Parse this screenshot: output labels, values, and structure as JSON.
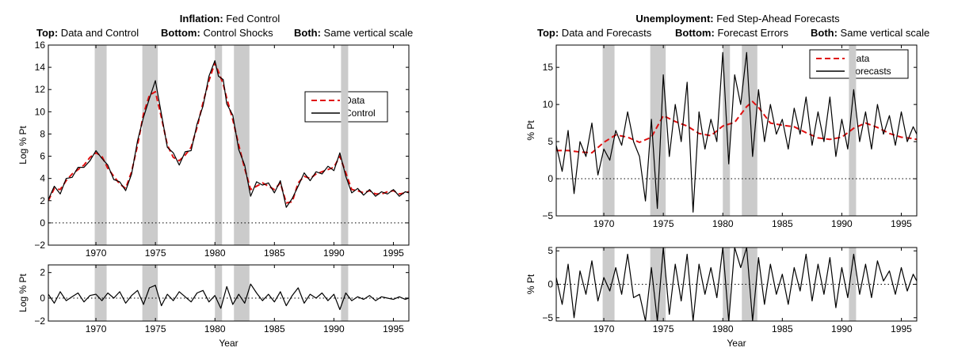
{
  "chart_data": [
    {
      "id": "inflation",
      "type": "line",
      "title_bold": "Inflation:",
      "title_rest": "Fed Control",
      "sub_labels": [
        {
          "bold": "Top:",
          "text": "Data and Control"
        },
        {
          "bold": "Bottom:",
          "text": "Control Shocks"
        },
        {
          "bold": "Both:",
          "text": "Same vertical scale"
        }
      ],
      "xlabel": "Year",
      "xlim": [
        1966,
        1996.3
      ],
      "xticks": [
        1970,
        1975,
        1980,
        1985,
        1990,
        1995
      ],
      "shaded_periods": [
        [
          1969.9,
          1970.9
        ],
        [
          1973.9,
          1975.2
        ],
        [
          1980.0,
          1980.6
        ],
        [
          1981.6,
          1982.9
        ],
        [
          1990.6,
          1991.2
        ]
      ],
      "top": {
        "ylabel": "Log % Pt",
        "ylim": [
          -2,
          16
        ],
        "yticks": [
          -2,
          0,
          2,
          4,
          6,
          8,
          10,
          12,
          14,
          16
        ],
        "zero_line": true,
        "legend_position": "right",
        "series": [
          {
            "name": "Data",
            "color": "#e01010",
            "style": "dashed",
            "x": [
              1966.0,
              1966.5,
              1967.0,
              1967.5,
              1968.0,
              1968.5,
              1969.0,
              1969.5,
              1970.0,
              1970.5,
              1971.0,
              1971.5,
              1972.0,
              1972.5,
              1973.0,
              1973.5,
              1974.0,
              1974.5,
              1975.0,
              1975.5,
              1976.0,
              1976.5,
              1977.0,
              1977.5,
              1978.0,
              1978.5,
              1979.0,
              1979.5,
              1980.0,
              1980.3,
              1980.7,
              1981.0,
              1981.5,
              1982.0,
              1982.5,
              1983.0,
              1983.5,
              1984.0,
              1984.5,
              1985.0,
              1985.5,
              1986.0,
              1986.5,
              1987.0,
              1987.5,
              1988.0,
              1988.5,
              1989.0,
              1989.5,
              1990.0,
              1990.5,
              1991.0,
              1991.5,
              1992.0,
              1992.5,
              1993.0,
              1993.5,
              1994.0,
              1994.5,
              1995.0,
              1995.5,
              1996.0,
              1996.3
            ],
            "y": [
              2.0,
              3.1,
              3.0,
              3.8,
              4.4,
              4.8,
              5.2,
              5.9,
              6.3,
              6.0,
              4.9,
              4.2,
              3.5,
              3.1,
              4.6,
              7.0,
              9.8,
              11.5,
              11.8,
              9.5,
              7.0,
              5.9,
              5.6,
              6.1,
              6.8,
              8.6,
              10.8,
              12.8,
              14.4,
              13.6,
              12.5,
              11.2,
              9.3,
              7.0,
              4.9,
              3.0,
              3.3,
              3.6,
              3.3,
              3.0,
              3.6,
              1.8,
              1.9,
              3.6,
              4.2,
              4.0,
              4.4,
              4.6,
              4.8,
              5.0,
              6.0,
              4.5,
              3.0,
              2.9,
              2.7,
              2.9,
              2.6,
              2.6,
              2.8,
              2.9,
              2.6,
              2.7,
              2.8
            ]
          },
          {
            "name": "Control",
            "color": "#000000",
            "style": "solid",
            "x": [
              1966.0,
              1966.5,
              1967.0,
              1967.5,
              1968.0,
              1968.5,
              1969.0,
              1969.5,
              1970.0,
              1970.5,
              1971.0,
              1971.5,
              1972.0,
              1972.5,
              1973.0,
              1973.5,
              1974.0,
              1974.5,
              1975.0,
              1975.5,
              1976.0,
              1976.5,
              1977.0,
              1977.5,
              1978.0,
              1978.5,
              1979.0,
              1979.5,
              1980.0,
              1980.3,
              1980.7,
              1981.0,
              1981.5,
              1982.0,
              1982.5,
              1983.0,
              1983.5,
              1984.0,
              1984.5,
              1985.0,
              1985.5,
              1986.0,
              1986.5,
              1987.0,
              1987.5,
              1988.0,
              1988.5,
              1989.0,
              1989.5,
              1990.0,
              1990.5,
              1991.0,
              1991.5,
              1992.0,
              1992.5,
              1993.0,
              1993.5,
              1994.0,
              1994.5,
              1995.0,
              1995.5,
              1996.0,
              1996.3
            ],
            "y": [
              2.1,
              3.3,
              2.6,
              4.0,
              4.1,
              5.0,
              5.0,
              5.6,
              6.5,
              5.8,
              5.2,
              3.9,
              3.7,
              2.9,
              4.4,
              7.4,
              9.5,
              11.2,
              12.8,
              9.8,
              6.8,
              6.3,
              5.2,
              6.4,
              6.5,
              8.9,
              10.5,
              13.2,
              14.6,
              13.2,
              12.9,
              10.7,
              9.7,
              6.6,
              5.2,
              2.4,
              3.7,
              3.4,
              3.6,
              2.7,
              3.8,
              1.4,
              2.2,
              3.3,
              4.5,
              3.8,
              4.6,
              4.4,
              5.1,
              4.7,
              6.3,
              4.2,
              2.7,
              3.1,
              2.5,
              3.0,
              2.4,
              2.8,
              2.6,
              3.0,
              2.4,
              2.8,
              2.7
            ]
          }
        ]
      },
      "bottom": {
        "ylabel": "Log % Pt",
        "ylim": [
          -1.8,
          2.6
        ],
        "yticks": [
          -2,
          0,
          2
        ],
        "zero_line": true,
        "series": [
          {
            "name": "Control Shocks",
            "color": "#000000",
            "style": "solid",
            "x": [
              1966.0,
              1966.5,
              1967.0,
              1967.5,
              1968.0,
              1968.5,
              1969.0,
              1969.5,
              1970.0,
              1970.5,
              1971.0,
              1971.5,
              1972.0,
              1972.5,
              1973.0,
              1973.5,
              1974.0,
              1974.5,
              1975.0,
              1975.5,
              1976.0,
              1976.5,
              1977.0,
              1977.5,
              1978.0,
              1978.5,
              1979.0,
              1979.5,
              1980.0,
              1980.5,
              1981.0,
              1981.5,
              1982.0,
              1982.5,
              1983.0,
              1983.5,
              1984.0,
              1984.5,
              1985.0,
              1985.5,
              1986.0,
              1986.5,
              1987.0,
              1987.5,
              1988.0,
              1988.5,
              1989.0,
              1989.5,
              1990.0,
              1990.5,
              1991.0,
              1991.5,
              1992.0,
              1992.5,
              1993.0,
              1993.5,
              1994.0,
              1994.5,
              1995.0,
              1995.5,
              1996.0,
              1996.3
            ],
            "y": [
              0.3,
              -0.4,
              0.5,
              -0.2,
              0.1,
              0.4,
              -0.3,
              0.2,
              0.3,
              -0.2,
              0.4,
              0.0,
              0.5,
              -0.4,
              0.2,
              0.6,
              -0.5,
              0.8,
              1.0,
              -0.6,
              0.3,
              -0.2,
              0.5,
              0.1,
              -0.3,
              0.4,
              0.6,
              -0.3,
              0.2,
              -0.8,
              0.9,
              -0.5,
              0.3,
              -0.4,
              1.1,
              0.4,
              -0.2,
              0.3,
              -0.3,
              0.5,
              -0.6,
              0.2,
              0.8,
              -0.4,
              0.3,
              0.0,
              0.4,
              -0.2,
              0.3,
              -0.9,
              0.4,
              -0.2,
              0.1,
              -0.1,
              0.2,
              -0.2,
              0.1,
              0.0,
              -0.1,
              0.1,
              -0.1,
              0.0
            ]
          }
        ]
      }
    },
    {
      "id": "unemployment",
      "type": "line",
      "title_bold": "Unemployment:",
      "title_rest": "Fed Step-Ahead Forecasts",
      "sub_labels": [
        {
          "bold": "Top:",
          "text": "Data and Forecasts"
        },
        {
          "bold": "Bottom:",
          "text": "Forecast Errors"
        },
        {
          "bold": "Both:",
          "text": "Same vertical scale"
        }
      ],
      "xlabel": "Year",
      "xlim": [
        1966,
        1996.3
      ],
      "xticks": [
        1970,
        1975,
        1980,
        1985,
        1990,
        1995
      ],
      "shaded_periods": [
        [
          1969.9,
          1970.9
        ],
        [
          1973.9,
          1975.2
        ],
        [
          1980.0,
          1980.6
        ],
        [
          1981.6,
          1982.9
        ],
        [
          1990.6,
          1991.2
        ]
      ],
      "top": {
        "ylabel": "% Pt",
        "ylim": [
          -5,
          18
        ],
        "yticks": [
          -5,
          0,
          5,
          10,
          15
        ],
        "zero_line": true,
        "legend_position": "top-right",
        "series": [
          {
            "name": "Data",
            "color": "#e01010",
            "style": "dashed",
            "x": [
              1966.0,
              1967.0,
              1968.0,
              1969.0,
              1970.0,
              1971.0,
              1972.0,
              1973.0,
              1974.0,
              1975.0,
              1976.0,
              1977.0,
              1978.0,
              1979.0,
              1980.0,
              1981.0,
              1982.0,
              1982.5,
              1983.0,
              1984.0,
              1985.0,
              1986.0,
              1987.0,
              1988.0,
              1989.0,
              1990.0,
              1991.0,
              1992.0,
              1993.0,
              1994.0,
              1995.0,
              1996.0,
              1996.3
            ],
            "y": [
              3.8,
              3.8,
              3.6,
              3.5,
              4.9,
              5.9,
              5.6,
              4.9,
              5.6,
              8.5,
              7.7,
              7.1,
              6.1,
              5.8,
              7.1,
              7.6,
              9.7,
              10.4,
              9.6,
              7.5,
              7.2,
              7.0,
              6.2,
              5.5,
              5.3,
              5.6,
              6.8,
              7.5,
              6.9,
              6.1,
              5.6,
              5.4,
              5.3
            ]
          },
          {
            "name": "Forecasts",
            "color": "#000000",
            "style": "solid",
            "x": [
              1966.0,
              1966.5,
              1967.0,
              1967.5,
              1968.0,
              1968.5,
              1969.0,
              1969.5,
              1970.0,
              1970.5,
              1971.0,
              1971.5,
              1972.0,
              1972.5,
              1973.0,
              1973.5,
              1974.0,
              1974.5,
              1975.0,
              1975.5,
              1976.0,
              1976.5,
              1977.0,
              1977.5,
              1978.0,
              1978.5,
              1979.0,
              1979.5,
              1980.0,
              1980.5,
              1981.0,
              1981.5,
              1982.0,
              1982.5,
              1983.0,
              1983.5,
              1984.0,
              1984.5,
              1985.0,
              1985.5,
              1986.0,
              1986.5,
              1987.0,
              1987.5,
              1988.0,
              1988.5,
              1989.0,
              1989.5,
              1990.0,
              1990.5,
              1991.0,
              1991.5,
              1992.0,
              1992.5,
              1993.0,
              1993.5,
              1994.0,
              1994.5,
              1995.0,
              1995.5,
              1996.0,
              1996.3
            ],
            "y": [
              4.5,
              1.0,
              6.5,
              -2.0,
              5.0,
              3.0,
              7.5,
              0.5,
              4.0,
              2.5,
              6.5,
              4.5,
              9.0,
              5.0,
              3.0,
              -3.0,
              8.0,
              -4.0,
              14.0,
              3.0,
              10.0,
              5.0,
              13.0,
              -4.5,
              9.0,
              4.0,
              8.0,
              5.0,
              17.0,
              2.0,
              14.0,
              10.0,
              17.0,
              3.0,
              12.0,
              5.0,
              10.0,
              6.0,
              8.0,
              4.0,
              9.5,
              6.0,
              11.0,
              4.5,
              9.0,
              5.0,
              11.0,
              3.0,
              8.0,
              4.0,
              12.0,
              5.0,
              9.0,
              4.0,
              10.0,
              6.0,
              8.5,
              4.5,
              9.0,
              5.0,
              7.0,
              6.0
            ]
          }
        ]
      },
      "bottom": {
        "ylabel": "% Pt",
        "ylim": [
          -5.5,
          5.5
        ],
        "yticks": [
          -5,
          0,
          5
        ],
        "zero_line": true,
        "series": [
          {
            "name": "Forecast Errors",
            "color": "#000000",
            "style": "solid",
            "x": [
              1966.0,
              1966.5,
              1967.0,
              1967.5,
              1968.0,
              1968.5,
              1969.0,
              1969.5,
              1970.0,
              1970.5,
              1971.0,
              1971.5,
              1972.0,
              1972.5,
              1973.0,
              1973.5,
              1974.0,
              1974.5,
              1975.0,
              1975.5,
              1976.0,
              1976.5,
              1977.0,
              1977.5,
              1978.0,
              1978.5,
              1979.0,
              1979.5,
              1980.0,
              1980.5,
              1981.0,
              1981.5,
              1982.0,
              1982.5,
              1983.0,
              1983.5,
              1984.0,
              1984.5,
              1985.0,
              1985.5,
              1986.0,
              1986.5,
              1987.0,
              1987.5,
              1988.0,
              1988.5,
              1989.0,
              1989.5,
              1990.0,
              1990.5,
              1991.0,
              1991.5,
              1992.0,
              1992.5,
              1993.0,
              1993.5,
              1994.0,
              1994.5,
              1995.0,
              1995.5,
              1996.0,
              1996.3
            ],
            "y": [
              1.0,
              -3.0,
              3.0,
              -5.0,
              2.0,
              -1.5,
              3.5,
              -2.5,
              1.0,
              -1.0,
              2.5,
              -1.5,
              4.5,
              -2.0,
              -1.5,
              -5.5,
              2.5,
              -5.5,
              5.5,
              -4.5,
              3.0,
              -2.5,
              4.5,
              -5.5,
              3.0,
              -1.5,
              2.5,
              -2.0,
              5.5,
              -5.5,
              5.5,
              2.5,
              5.5,
              -5.5,
              4.0,
              -3.0,
              3.0,
              -1.5,
              1.5,
              -3.0,
              2.5,
              -1.0,
              4.5,
              -2.5,
              3.0,
              -1.5,
              4.0,
              -3.5,
              2.5,
              -2.0,
              4.5,
              -1.5,
              3.0,
              -2.0,
              3.5,
              0.5,
              2.0,
              -1.5,
              2.5,
              -1.0,
              1.5,
              0.5
            ]
          }
        ]
      }
    }
  ]
}
